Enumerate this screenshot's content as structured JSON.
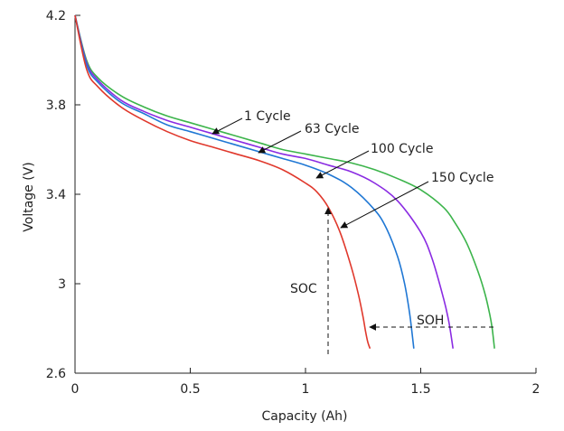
{
  "chart_data": {
    "type": "line",
    "title": "",
    "xlabel": "Capacity (Ah)",
    "ylabel": "Voltage (V)",
    "xlim": [
      0,
      2
    ],
    "ylim": [
      2.6,
      4.2
    ],
    "xticks": [
      0,
      0.5,
      1,
      1.5,
      2
    ],
    "xtick_labels": [
      "0",
      "0.5",
      "1",
      "1.5",
      "2"
    ],
    "yticks": [
      2.6,
      3,
      3.4,
      3.8,
      4.2
    ],
    "ytick_labels": [
      "2.6",
      "3",
      "3.4",
      "3.8",
      "4.2"
    ],
    "grid": false,
    "series": [
      {
        "name": "1 Cycle",
        "color": "#3cb44b",
        "x": [
          0,
          0.05,
          0.1,
          0.2,
          0.3,
          0.4,
          0.5,
          0.6,
          0.7,
          0.8,
          0.9,
          1.0,
          1.1,
          1.2,
          1.3,
          1.4,
          1.5,
          1.6,
          1.65,
          1.7,
          1.75,
          1.78,
          1.8,
          1.81,
          1.82
        ],
        "y": [
          4.2,
          4.0,
          3.92,
          3.84,
          3.79,
          3.75,
          3.72,
          3.69,
          3.66,
          3.63,
          3.6,
          3.58,
          3.56,
          3.54,
          3.51,
          3.47,
          3.42,
          3.34,
          3.27,
          3.18,
          3.05,
          2.95,
          2.86,
          2.8,
          2.71
        ]
      },
      {
        "name": "63 Cycle",
        "color": "#8a2be2",
        "x": [
          0,
          0.05,
          0.1,
          0.2,
          0.3,
          0.4,
          0.5,
          0.6,
          0.7,
          0.8,
          0.9,
          1.0,
          1.1,
          1.2,
          1.3,
          1.4,
          1.5,
          1.55,
          1.6,
          1.62,
          1.63,
          1.64
        ],
        "y": [
          4.2,
          3.99,
          3.91,
          3.82,
          3.77,
          3.73,
          3.7,
          3.67,
          3.64,
          3.61,
          3.58,
          3.56,
          3.53,
          3.5,
          3.45,
          3.37,
          3.23,
          3.11,
          2.93,
          2.84,
          2.78,
          2.71
        ]
      },
      {
        "name": "100 Cycle",
        "color": "#1f77d4",
        "x": [
          0,
          0.05,
          0.1,
          0.2,
          0.3,
          0.4,
          0.5,
          0.6,
          0.7,
          0.8,
          0.9,
          1.0,
          1.1,
          1.2,
          1.3,
          1.35,
          1.4,
          1.43,
          1.45,
          1.46,
          1.47
        ],
        "y": [
          4.2,
          3.98,
          3.9,
          3.81,
          3.76,
          3.71,
          3.68,
          3.65,
          3.62,
          3.59,
          3.56,
          3.53,
          3.49,
          3.43,
          3.33,
          3.25,
          3.12,
          3.0,
          2.88,
          2.8,
          2.71
        ]
      },
      {
        "name": "150 Cycle",
        "color": "#e0382c",
        "x": [
          0,
          0.05,
          0.1,
          0.2,
          0.3,
          0.4,
          0.5,
          0.6,
          0.7,
          0.8,
          0.9,
          1.0,
          1.05,
          1.1,
          1.15,
          1.2,
          1.23,
          1.25,
          1.26,
          1.27,
          1.28
        ],
        "y": [
          4.2,
          3.96,
          3.88,
          3.79,
          3.73,
          3.68,
          3.64,
          3.61,
          3.58,
          3.55,
          3.51,
          3.45,
          3.41,
          3.34,
          3.23,
          3.07,
          2.95,
          2.85,
          2.79,
          2.74,
          2.71
        ]
      }
    ],
    "annotations": [
      {
        "text": "1 Cycle",
        "color": "#222222"
      },
      {
        "text": "63 Cycle",
        "color": "#222222"
      },
      {
        "text": "100 Cycle",
        "color": "#222222"
      },
      {
        "text": "150 Cycle",
        "color": "#222222"
      },
      {
        "text": "SOC",
        "color": "#222222"
      },
      {
        "text": "SOH",
        "color": "#222222"
      }
    ]
  }
}
